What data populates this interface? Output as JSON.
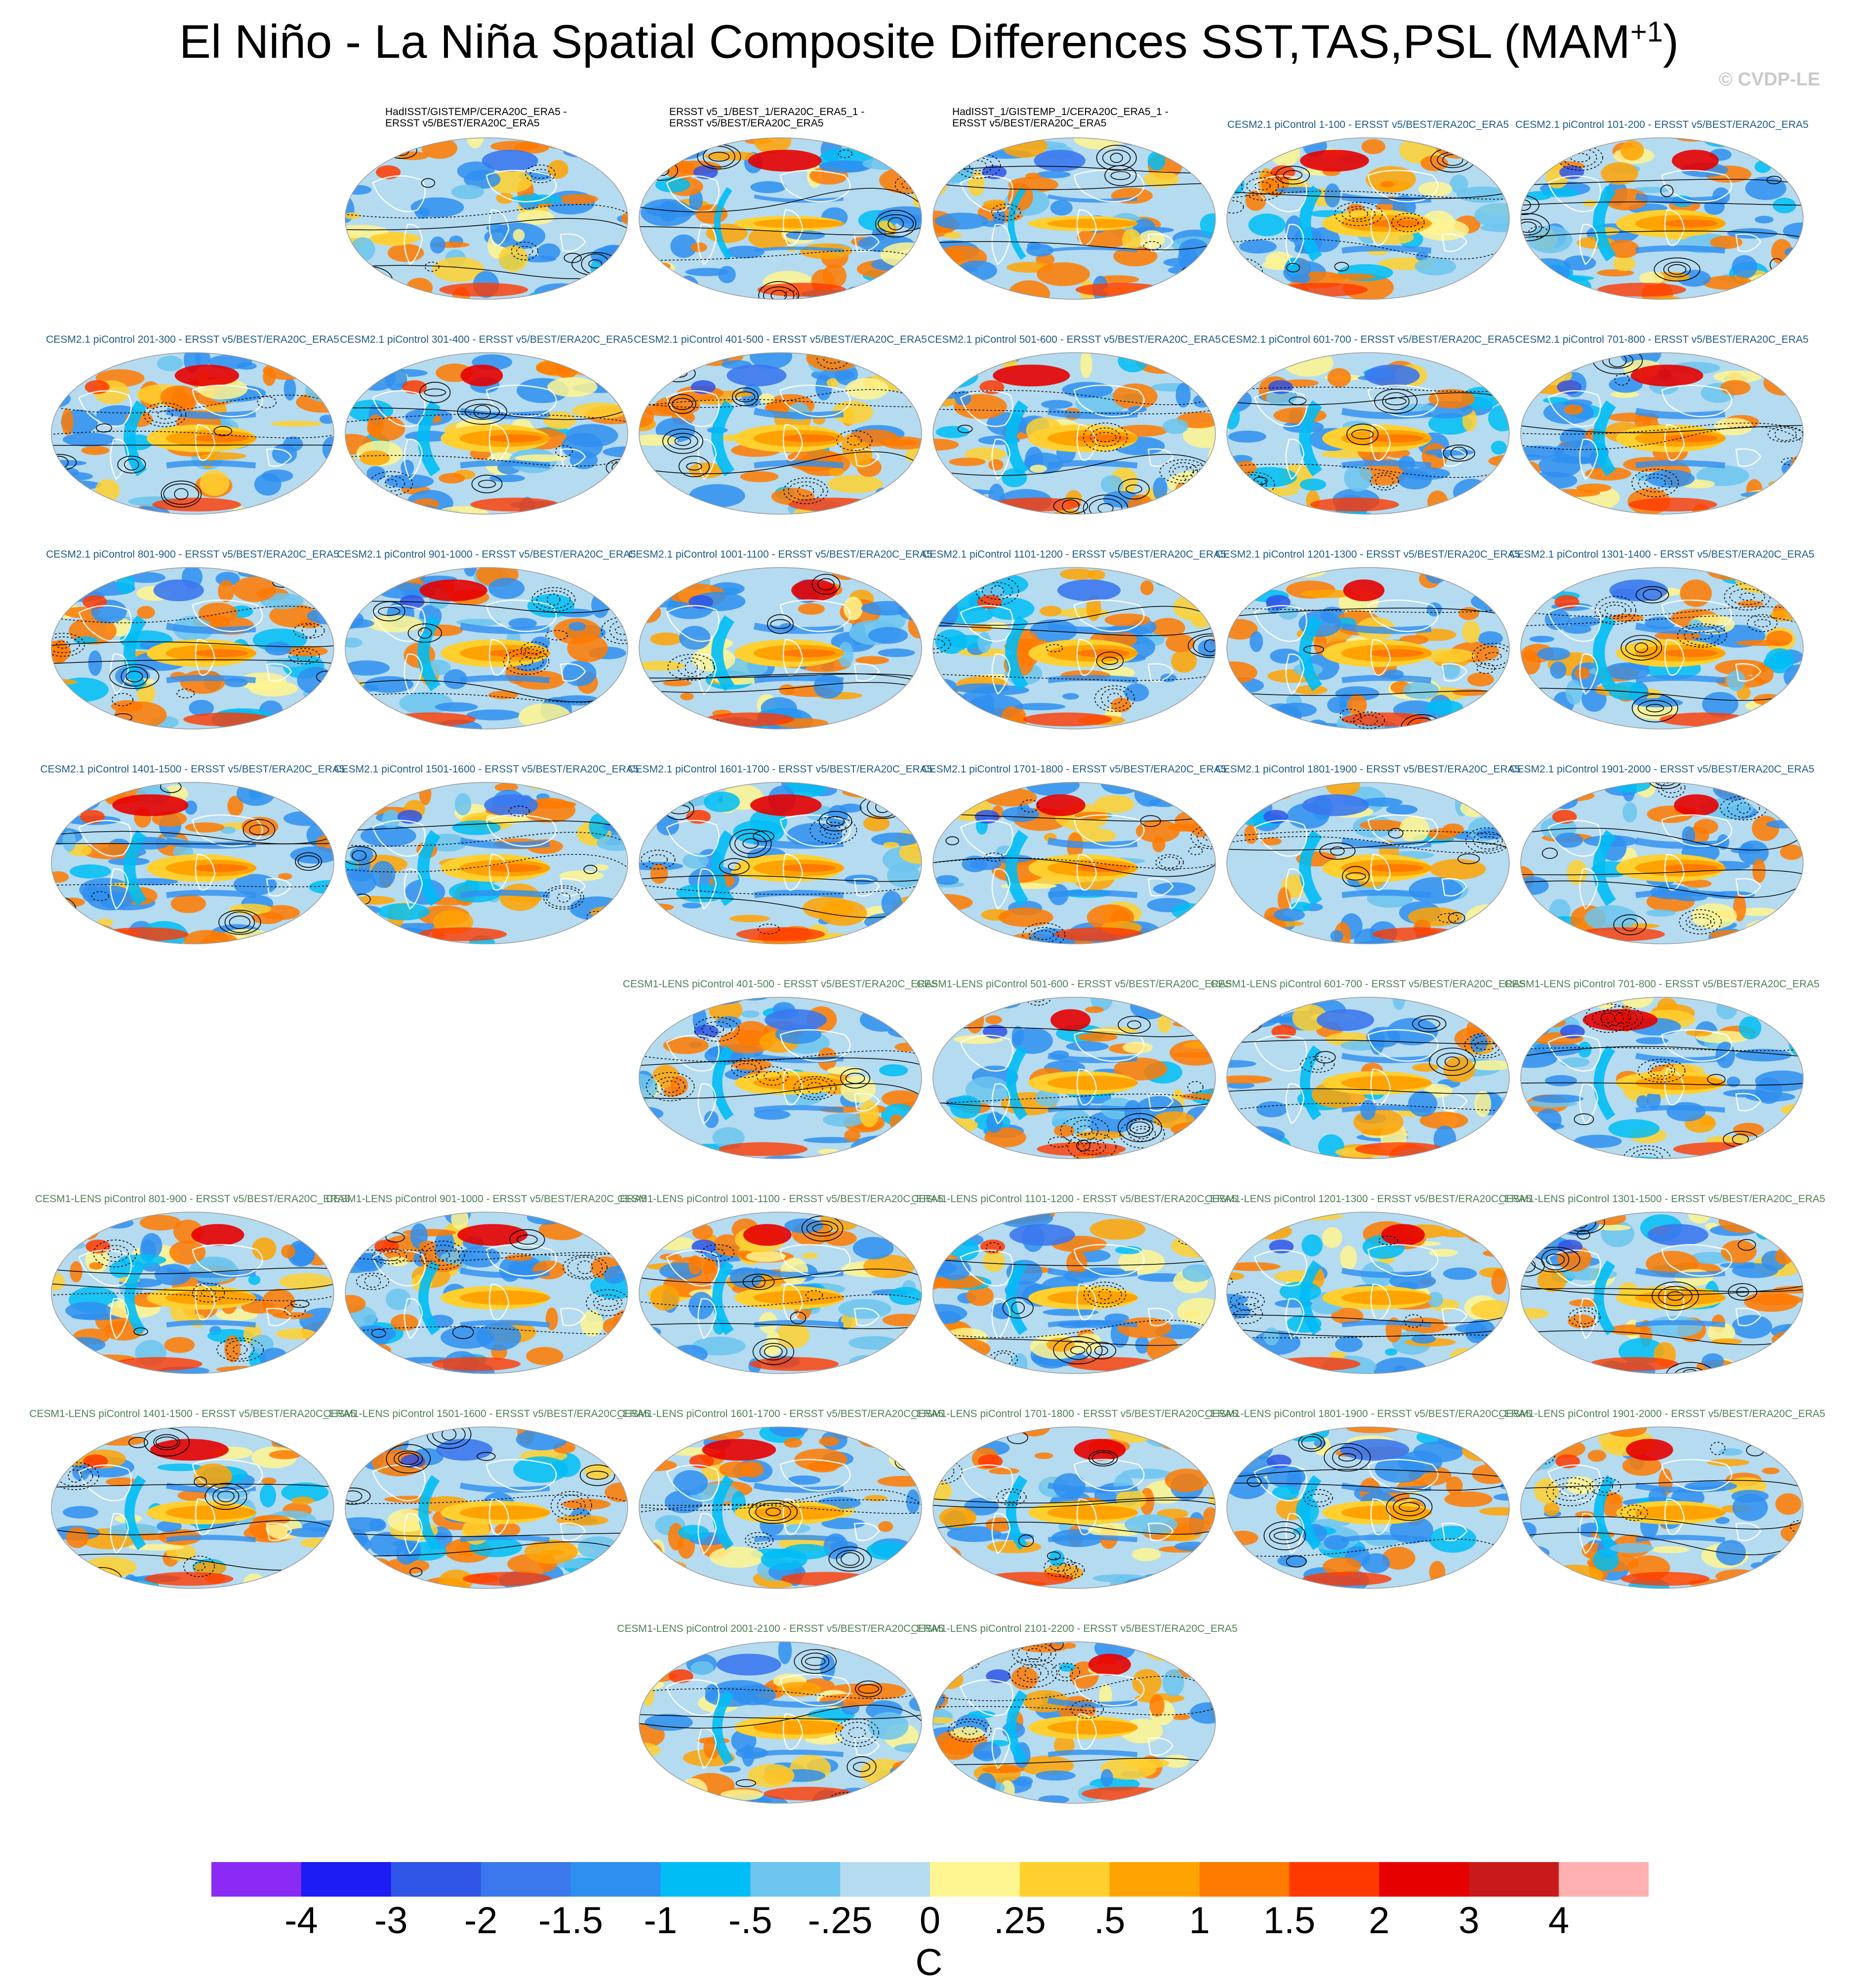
{
  "title": {
    "main": "El Niño - La Niña Spatial Composite Differences SST,TAS,PSL (MAM",
    "superscript": "+1",
    "close": ")"
  },
  "watermark": "© CVDP-LE",
  "colors": {
    "obs_title": "#000000",
    "cesm2_title": "#1e5b84",
    "lens_title": "#4f8155",
    "land_outline": "#ffffff",
    "contour": "#000000"
  },
  "panels": [
    {
      "id": "obs-1",
      "group": "obs",
      "title_line1": "HadISST/GISTEMP/CERA20C_ERA5 -",
      "title_line2": "ERSST v5/BEST/ERA20C_ERA5",
      "intensity": 0.35
    },
    {
      "id": "obs-2",
      "group": "obs",
      "title_line1": "ERSST v5_1/BEST_1/ERA20C_ERA5_1 -",
      "title_line2": "ERSST v5/BEST/ERA20C_ERA5",
      "intensity": 0.55
    },
    {
      "id": "obs-3",
      "group": "obs",
      "title_line1": "HadISST_1/GISTEMP_1/CERA20C_ERA5_1 -",
      "title_line2": "ERSST v5/BEST/ERA20C_ERA5",
      "intensity": 0.55
    },
    {
      "id": "cesm2-1",
      "group": "cesm2",
      "title_line1": "CESM2.1 piControl 1-100 - ERSST v5/BEST/ERA20C_ERA5",
      "title_line2": "",
      "intensity": 1.0
    },
    {
      "id": "cesm2-2",
      "group": "cesm2",
      "title_line1": "CESM2.1 piControl 101-200 - ERSST v5/BEST/ERA20C_ERA5",
      "title_line2": "",
      "intensity": 1.0
    },
    {
      "id": "cesm2-3",
      "group": "cesm2",
      "title_line1": "CESM2.1 piControl 201-300 - ERSST v5/BEST/ERA20C_ERA5",
      "title_line2": "",
      "intensity": 1.0
    },
    {
      "id": "cesm2-4",
      "group": "cesm2",
      "title_line1": "CESM2.1 piControl 301-400 - ERSST v5/BEST/ERA20C_ERA5",
      "title_line2": "",
      "intensity": 1.0
    },
    {
      "id": "cesm2-5",
      "group": "cesm2",
      "title_line1": "CESM2.1 piControl 401-500 - ERSST v5/BEST/ERA20C_ERA5",
      "title_line2": "",
      "intensity": 1.0
    },
    {
      "id": "cesm2-6",
      "group": "cesm2",
      "title_line1": "CESM2.1 piControl 501-600 - ERSST v5/BEST/ERA20C_ERA5",
      "title_line2": "",
      "intensity": 1.0
    },
    {
      "id": "cesm2-7",
      "group": "cesm2",
      "title_line1": "CESM2.1 piControl 601-700 - ERSST v5/BEST/ERA20C_ERA5",
      "title_line2": "",
      "intensity": 1.0
    },
    {
      "id": "cesm2-8",
      "group": "cesm2",
      "title_line1": "CESM2.1 piControl 701-800 - ERSST v5/BEST/ERA20C_ERA5",
      "title_line2": "",
      "intensity": 1.0
    },
    {
      "id": "cesm2-9",
      "group": "cesm2",
      "title_line1": "CESM2.1 piControl 801-900 - ERSST v5/BEST/ERA20C_ERA5",
      "title_line2": "",
      "intensity": 1.0
    },
    {
      "id": "cesm2-10",
      "group": "cesm2",
      "title_line1": "CESM2.1 piControl 901-1000 - ERSST v5/BEST/ERA20C_ERA5",
      "title_line2": "",
      "intensity": 1.0
    },
    {
      "id": "cesm2-11",
      "group": "cesm2",
      "title_line1": "CESM2.1 piControl 1001-1100 - ERSST v5/BEST/ERA20C_ERA5",
      "title_line2": "",
      "intensity": 1.0
    },
    {
      "id": "cesm2-12",
      "group": "cesm2",
      "title_line1": "CESM2.1 piControl 1101-1200 - ERSST v5/BEST/ERA20C_ERA5",
      "title_line2": "",
      "intensity": 1.0
    },
    {
      "id": "cesm2-13",
      "group": "cesm2",
      "title_line1": "CESM2.1 piControl 1201-1300 - ERSST v5/BEST/ERA20C_ERA5",
      "title_line2": "",
      "intensity": 1.0
    },
    {
      "id": "cesm2-14",
      "group": "cesm2",
      "title_line1": "CESM2.1 piControl 1301-1400 - ERSST v5/BEST/ERA20C_ERA5",
      "title_line2": "",
      "intensity": 1.0
    },
    {
      "id": "cesm2-15",
      "group": "cesm2",
      "title_line1": "CESM2.1 piControl 1401-1500 - ERSST v5/BEST/ERA20C_ERA5",
      "title_line2": "",
      "intensity": 1.0
    },
    {
      "id": "cesm2-16",
      "group": "cesm2",
      "title_line1": "CESM2.1 piControl 1501-1600 - ERSST v5/BEST/ERA20C_ERA5",
      "title_line2": "",
      "intensity": 1.0
    },
    {
      "id": "cesm2-17",
      "group": "cesm2",
      "title_line1": "CESM2.1 piControl 1601-1700 - ERSST v5/BEST/ERA20C_ERA5",
      "title_line2": "",
      "intensity": 1.0
    },
    {
      "id": "cesm2-18",
      "group": "cesm2",
      "title_line1": "CESM2.1 piControl 1701-1800 - ERSST v5/BEST/ERA20C_ERA5",
      "title_line2": "",
      "intensity": 1.0
    },
    {
      "id": "cesm2-19",
      "group": "cesm2",
      "title_line1": "CESM2.1 piControl 1801-1900 - ERSST v5/BEST/ERA20C_ERA5",
      "title_line2": "",
      "intensity": 1.0
    },
    {
      "id": "cesm2-20",
      "group": "cesm2",
      "title_line1": "CESM2.1 piControl 1901-2000 - ERSST v5/BEST/ERA20C_ERA5",
      "title_line2": "",
      "intensity": 1.0
    },
    {
      "id": "lens-1",
      "group": "lens",
      "title_line1": "CESM1-LENS piControl 401-500 - ERSST v5/BEST/ERA20C_ERA5",
      "title_line2": "",
      "intensity": 0.85
    },
    {
      "id": "lens-2",
      "group": "lens",
      "title_line1": "CESM1-LENS piControl 501-600 - ERSST v5/BEST/ERA20C_ERA5",
      "title_line2": "",
      "intensity": 0.85
    },
    {
      "id": "lens-3",
      "group": "lens",
      "title_line1": "CESM1-LENS piControl 601-700 - ERSST v5/BEST/ERA20C_ERA5",
      "title_line2": "",
      "intensity": 0.85
    },
    {
      "id": "lens-4",
      "group": "lens",
      "title_line1": "CESM1-LENS piControl 701-800 - ERSST v5/BEST/ERA20C_ERA5",
      "title_line2": "",
      "intensity": 0.85
    },
    {
      "id": "lens-5",
      "group": "lens",
      "title_line1": "CESM1-LENS piControl 801-900 - ERSST v5/BEST/ERA20C_ERA5",
      "title_line2": "",
      "intensity": 0.85
    },
    {
      "id": "lens-6",
      "group": "lens",
      "title_line1": "CESM1-LENS piControl 901-1000 - ERSST v5/BEST/ERA20C_ERA5",
      "title_line2": "",
      "intensity": 0.85
    },
    {
      "id": "lens-7",
      "group": "lens",
      "title_line1": "CESM1-LENS piControl 1001-1100 - ERSST v5/BEST/ERA20C_ERA5",
      "title_line2": "",
      "intensity": 0.85
    },
    {
      "id": "lens-8",
      "group": "lens",
      "title_line1": "CESM1-LENS piControl 1101-1200 - ERSST v5/BEST/ERA20C_ERA5",
      "title_line2": "",
      "intensity": 0.85
    },
    {
      "id": "lens-9",
      "group": "lens",
      "title_line1": "CESM1-LENS piControl 1201-1300 - ERSST v5/BEST/ERA20C_ERA5",
      "title_line2": "",
      "intensity": 0.85
    },
    {
      "id": "lens-10",
      "group": "lens",
      "title_line1": "CESM1-LENS piControl 1301-1500 - ERSST v5/BEST/ERA20C_ERA5",
      "title_line2": "",
      "intensity": 0.85
    },
    {
      "id": "lens-11",
      "group": "lens",
      "title_line1": "CESM1-LENS piControl 1401-1500 - ERSST v5/BEST/ERA20C_ERA5",
      "title_line2": "",
      "intensity": 0.85
    },
    {
      "id": "lens-12",
      "group": "lens",
      "title_line1": "CESM1-LENS piControl 1501-1600 - ERSST v5/BEST/ERA20C_ERA5",
      "title_line2": "",
      "intensity": 0.85
    },
    {
      "id": "lens-13",
      "group": "lens",
      "title_line1": "CESM1-LENS piControl 1601-1700 - ERSST v5/BEST/ERA20C_ERA5",
      "title_line2": "",
      "intensity": 0.85
    },
    {
      "id": "lens-14",
      "group": "lens",
      "title_line1": "CESM1-LENS piControl 1701-1800 - ERSST v5/BEST/ERA20C_ERA5",
      "title_line2": "",
      "intensity": 0.85
    },
    {
      "id": "lens-15",
      "group": "lens",
      "title_line1": "CESM1-LENS piControl 1801-1900 - ERSST v5/BEST/ERA20C_ERA5",
      "title_line2": "",
      "intensity": 0.85
    },
    {
      "id": "lens-16",
      "group": "lens",
      "title_line1": "CESM1-LENS piControl 1901-2000 - ERSST v5/BEST/ERA20C_ERA5",
      "title_line2": "",
      "intensity": 0.85
    },
    {
      "id": "lens-17",
      "group": "lens",
      "title_line1": "CESM1-LENS piControl 2001-2100 - ERSST v5/BEST/ERA20C_ERA5",
      "title_line2": "",
      "intensity": 0.85
    },
    {
      "id": "lens-18",
      "group": "lens",
      "title_line1": "CESM1-LENS piControl 2101-2200 - ERSST v5/BEST/ERA20C_ERA5",
      "title_line2": "",
      "intensity": 0.85
    }
  ],
  "chart_data": {
    "type": "heatmap",
    "title": "El Niño - La Niña Spatial Composite Differences SST,TAS,PSL (MAM+1)",
    "projection": "global elliptical map",
    "variables": [
      "SST",
      "TAS",
      "PSL"
    ],
    "shading": "SST/TAS difference",
    "contours": "PSL difference (solid positive, dashed negative)",
    "colorbar": {
      "units": "C",
      "levels": [
        "-4",
        "-3",
        "-2",
        "-1.5",
        "-1",
        "-.5",
        "-.25",
        "0",
        ".25",
        ".5",
        "1",
        "1.5",
        "2",
        "3",
        "4"
      ],
      "colors": [
        "#8a2bf5",
        "#1c1cf5",
        "#2f55e6",
        "#3b78ee",
        "#2f8ff0",
        "#00bdf5",
        "#6cc4ef",
        "#b5dbf0",
        "#fff591",
        "#ffd02f",
        "#ffa302",
        "#ff7a00",
        "#ff3a00",
        "#e60000",
        "#c81a1a",
        "#ffb0b0"
      ]
    }
  }
}
